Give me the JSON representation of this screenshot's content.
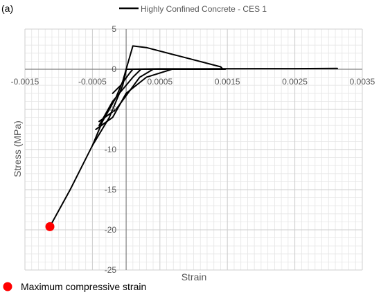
{
  "panel_label": "(a)",
  "chart_data": {
    "type": "line",
    "title": "",
    "xlabel": "Strain",
    "ylabel": "Stress (MPa)",
    "xlim": [
      -0.0015,
      0.0035
    ],
    "ylim": [
      -25,
      5
    ],
    "x_major_ticks": [
      -0.0015,
      -0.0005,
      0.0005,
      0.0015,
      0.0025,
      0.0035
    ],
    "x_tick_labels": [
      "-0.0015",
      "-0.0005",
      "0.0005",
      "0.0015",
      "0.0025",
      "0.0035"
    ],
    "x_minor_step": 0.0001,
    "y_major_ticks": [
      5,
      0,
      -5,
      -10,
      -15,
      -20,
      -25
    ],
    "y_tick_labels": [
      "5",
      "0",
      "-5",
      "-10",
      "-15",
      "-20",
      "-25"
    ],
    "y_minor_step": 1,
    "grid": true,
    "legend_position": "top",
    "series": [
      {
        "name": "Highly Confined Concrete - CES 1",
        "color": "#000000",
        "segments": [
          {
            "x": [
              -0.00113,
              -0.00083,
              -0.0005,
              -0.00035,
              -0.00015,
              -5e-05,
              0.0,
              0.0001,
              0.0003,
              0.0014,
              0.00143,
              0.00147,
              0.0009,
              0.0001,
              0.0
            ],
            "y": [
              -19.6,
              -15.0,
              -9.5,
              -6.5,
              -3.5,
              -1.5,
              0.0,
              2.9,
              2.7,
              0.3,
              0.05,
              0.0,
              0.0,
              0.0,
              0.0
            ]
          },
          {
            "x": [
              -0.0005,
              -0.00025,
              -5e-05,
              0.0
            ],
            "y": [
              -9.5,
              -6.0,
              -2.0,
              -0.1
            ]
          },
          {
            "x": [
              -0.00045,
              -0.0002,
              0.0,
              0.0003,
              0.00068,
              0.00065,
              0.0002,
              0.0
            ],
            "y": [
              -7.5,
              -6.0,
              -3.0,
              -1.0,
              0.0,
              0.0,
              0.0,
              0.0
            ]
          },
          {
            "x": [
              -0.0004,
              -0.00015,
              0.0002,
              0.0004,
              0.00038,
              0.0001
            ],
            "y": [
              -6.5,
              -5.0,
              -1.0,
              0.0,
              0.0,
              0.0
            ]
          },
          {
            "x": [
              -0.0004,
              -0.0002,
              0.0001,
              0.00022
            ],
            "y": [
              -7.0,
              -4.0,
              -1.0,
              0.0
            ]
          },
          {
            "x": [
              -0.0002,
              -8e-05,
              5e-05,
              0.0001
            ],
            "y": [
              -3.0,
              -2.0,
              -0.5,
              0.0
            ]
          },
          {
            "x": [
              0.0,
              0.0005,
              0.001,
              0.0015,
              0.002,
              0.0025,
              0.00313
            ],
            "y": [
              0.0,
              0.05,
              0.05,
              0.07,
              0.08,
              0.08,
              0.1
            ]
          }
        ]
      }
    ],
    "markers": [
      {
        "label": "Maximum compressive strain",
        "x": -0.00113,
        "y": -19.6,
        "color": "#ff0000"
      }
    ]
  }
}
